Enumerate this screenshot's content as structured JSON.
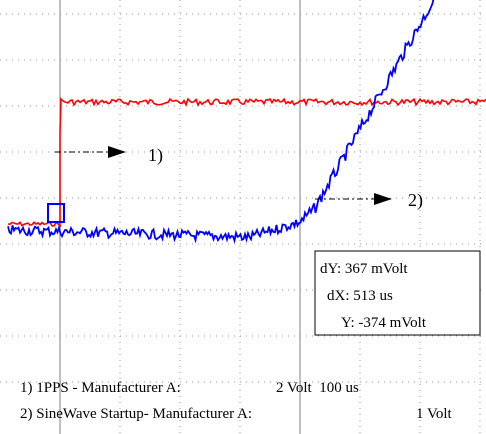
{
  "chart_data": {
    "type": "line",
    "grid": true,
    "markers": [
      {
        "label": "1)"
      },
      {
        "label": "2)"
      }
    ],
    "cursor_readout": {
      "dY": "dY: 367 mVolt",
      "dX": "dX: 513 us",
      "Y": "Y: -374 mVolt"
    },
    "channels": [
      {
        "text": "1) 1PPS - Manufacturer A:",
        "scale": "2 Volt  100 us",
        "color": "#ff0000"
      },
      {
        "text": "2) SineWave Startup- Manufacturer A:",
        "scale": "1 Volt",
        "color": "#0000ff"
      }
    ],
    "cursor_color": "#808080"
  }
}
